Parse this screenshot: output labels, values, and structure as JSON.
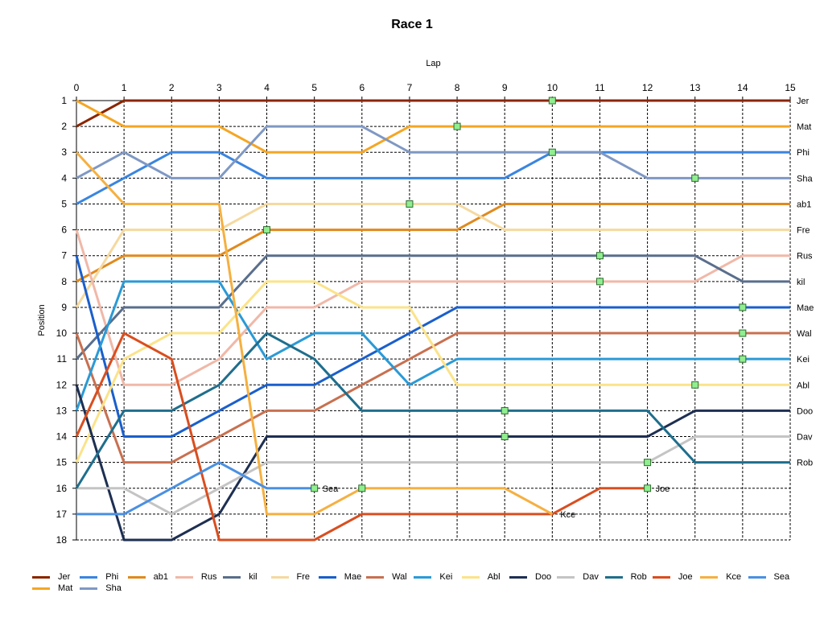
{
  "chart_data": {
    "type": "line",
    "title": "Race 1",
    "xlabel": "Lap",
    "ylabel": "Position",
    "x": [
      0,
      1,
      2,
      3,
      4,
      5,
      6,
      7,
      8,
      9,
      10,
      11,
      12,
      13,
      14,
      15
    ],
    "xlim": [
      0,
      15
    ],
    "ylim": [
      1,
      18
    ],
    "y_inverted": true,
    "x_axis_position": "top",
    "grid": true,
    "legend_position": "bottom",
    "right_labels": [
      "Jer",
      "Mat",
      "Phi",
      "Sha",
      "ab1",
      "Fre",
      "Rus",
      "kil",
      "Mae",
      "Wal",
      "Kei",
      "Abl",
      "Doo",
      "Dav",
      "Rob"
    ],
    "series": [
      {
        "name": "Jer",
        "color": "#8b2500",
        "values": [
          2,
          1,
          1,
          1,
          1,
          1,
          1,
          1,
          1,
          1,
          1,
          1,
          1,
          1,
          1,
          1
        ],
        "marker_lap": 10,
        "end_label": "Jer"
      },
      {
        "name": "Mat",
        "color": "#f5a623",
        "values": [
          1,
          2,
          2,
          2,
          3,
          3,
          3,
          2,
          2,
          2,
          2,
          2,
          2,
          2,
          2,
          2
        ],
        "marker_lap": 8,
        "end_label": "Mat"
      },
      {
        "name": "Phi",
        "color": "#3a85e0",
        "values": [
          5,
          4,
          3,
          3,
          4,
          4,
          4,
          4,
          4,
          4,
          3,
          3,
          3,
          3,
          3,
          3
        ],
        "marker_lap": 10,
        "end_label": "Phi"
      },
      {
        "name": "Sha",
        "color": "#7f98c4",
        "values": [
          4,
          3,
          4,
          4,
          2,
          2,
          2,
          3,
          3,
          3,
          3,
          3,
          4,
          4,
          4,
          4
        ],
        "marker_lap": 13,
        "end_label": "Sha"
      },
      {
        "name": "ab1",
        "color": "#e08a1e",
        "values": [
          8,
          7,
          7,
          7,
          6,
          6,
          6,
          6,
          6,
          5,
          5,
          5,
          5,
          5,
          5,
          5
        ],
        "marker_lap": 4,
        "end_label": "ab1"
      },
      {
        "name": "Fre",
        "color": "#f5d9a0",
        "values": [
          9,
          6,
          6,
          6,
          5,
          5,
          5,
          5,
          5,
          6,
          6,
          6,
          6,
          6,
          6,
          6
        ],
        "marker_lap": 7,
        "end_label": "Fre"
      },
      {
        "name": "Rus",
        "color": "#f0b8a8",
        "values": [
          6,
          12,
          12,
          11,
          9,
          9,
          8,
          8,
          8,
          8,
          8,
          8,
          8,
          8,
          7,
          7
        ],
        "marker_lap": 11,
        "end_label": "Rus"
      },
      {
        "name": "kil",
        "color": "#5a6e8c",
        "values": [
          11,
          9,
          9,
          9,
          7,
          7,
          7,
          7,
          7,
          7,
          7,
          7,
          7,
          7,
          8,
          8
        ],
        "marker_lap": 11,
        "end_label": "kil"
      },
      {
        "name": "Mae",
        "color": "#1a5fcc",
        "values": [
          7,
          14,
          14,
          13,
          12,
          12,
          11,
          10,
          9,
          9,
          9,
          9,
          9,
          9,
          9,
          9
        ],
        "marker_lap": 14,
        "end_label": "Mae"
      },
      {
        "name": "Wal",
        "color": "#c87050",
        "values": [
          10,
          15,
          15,
          14,
          13,
          13,
          12,
          11,
          10,
          10,
          10,
          10,
          10,
          10,
          10,
          10
        ],
        "marker_lap": 14,
        "end_label": "Wal"
      },
      {
        "name": "Kei",
        "color": "#2b9ad6",
        "values": [
          13,
          8,
          8,
          8,
          11,
          10,
          10,
          12,
          11,
          11,
          11,
          11,
          11,
          11,
          11,
          11
        ],
        "marker_lap": 14,
        "end_label": "Kei"
      },
      {
        "name": "Abl",
        "color": "#fbe38a",
        "values": [
          15,
          11,
          10,
          10,
          8,
          8,
          9,
          9,
          12,
          12,
          12,
          12,
          12,
          12,
          12,
          12
        ],
        "marker_lap": 13,
        "end_label": "Abl"
      },
      {
        "name": "Doo",
        "color": "#1e2f52",
        "values": [
          12,
          18,
          18,
          17,
          14,
          14,
          14,
          14,
          14,
          14,
          14,
          14,
          14,
          13,
          13,
          13
        ],
        "marker_lap": 9,
        "end_label": "Doo"
      },
      {
        "name": "Dav",
        "color": "#c4c4c4",
        "values": [
          16,
          16,
          17,
          16,
          15,
          15,
          15,
          15,
          15,
          15,
          15,
          15,
          15,
          14,
          14,
          14
        ],
        "marker_lap": 12,
        "end_label": "Dav"
      },
      {
        "name": "Rob",
        "color": "#1f6e8c",
        "values": [
          16,
          13,
          13,
          12,
          10,
          11,
          13,
          13,
          13,
          13,
          13,
          13,
          13,
          15,
          15,
          15
        ],
        "marker_lap": 9,
        "end_label": "Rob"
      },
      {
        "name": "Joe",
        "color": "#d94e1f",
        "values": [
          14,
          10,
          11,
          18,
          18,
          18,
          17,
          17,
          17,
          17,
          17,
          16,
          16,
          null,
          null,
          null
        ],
        "marker_lap": 12,
        "end_label": "Joe"
      },
      {
        "name": "Kce",
        "color": "#f5b041",
        "values": [
          3,
          5,
          5,
          5,
          17,
          17,
          16,
          16,
          16,
          16,
          17,
          null,
          null,
          null,
          null,
          null
        ],
        "marker_lap": 6,
        "end_label": "Kce"
      },
      {
        "name": "Sea",
        "color": "#4a90e2",
        "values": [
          17,
          17,
          16,
          15,
          16,
          16,
          null,
          null,
          null,
          null,
          null,
          null,
          null,
          null,
          null,
          null
        ],
        "marker_lap": 5,
        "end_label": "Sea"
      }
    ],
    "x_tick_labels": [
      "0",
      "1",
      "2",
      "3",
      "4",
      "5",
      "6",
      "7",
      "8",
      "9",
      "10",
      "11",
      "12",
      "13",
      "14",
      "15"
    ],
    "y_tick_labels": [
      "1",
      "2",
      "3",
      "4",
      "5",
      "6",
      "7",
      "8",
      "9",
      "10",
      "11",
      "12",
      "13",
      "14",
      "15",
      "16",
      "17",
      "18"
    ],
    "marker_color": "#90ee90",
    "marker_border": "#2e6b2e"
  },
  "legend_row1": [
    "Jer",
    "Phi",
    "ab1",
    "Rus",
    "kil",
    "Fre",
    "Mae",
    "Wal",
    "Kei",
    "Abl",
    "Doo",
    "Dav",
    "Rob",
    "Joe",
    "Kce",
    "Sea"
  ],
  "legend_row2": [
    "Mat",
    "Sha"
  ]
}
